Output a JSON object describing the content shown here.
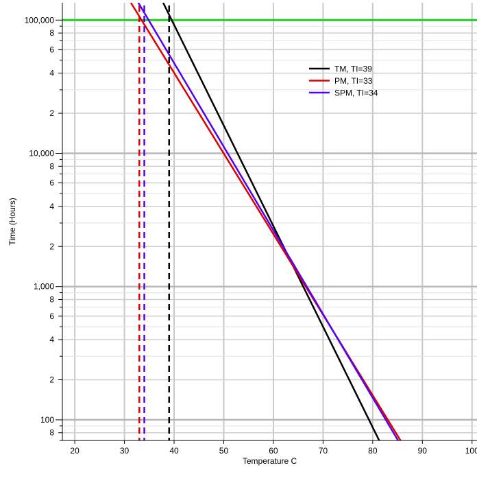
{
  "chart_data": {
    "type": "line",
    "xlabel": "Temperature C",
    "ylabel": "Time (Hours)",
    "xlim": [
      17.5,
      101
    ],
    "ylim": [
      70,
      135000
    ],
    "y_scale": "log",
    "grid": true,
    "x_ticks": [
      20,
      30,
      40,
      50,
      60,
      70,
      80,
      90,
      100
    ],
    "x_tick_labels": [
      "20",
      "30",
      "40",
      "50",
      "60",
      "70",
      "80",
      "90",
      "100"
    ],
    "y_major_ticks": [
      100,
      1000,
      10000,
      100000
    ],
    "y_major_labels": [
      "100",
      "1,000",
      "10,000",
      "100,000"
    ],
    "y_minor_labels": [
      "2",
      "4",
      "6",
      "8"
    ],
    "legend_position": "upper-right",
    "series": [
      {
        "name": "TM, TI=39",
        "color": "#000000",
        "points": [
          [
            37.8,
            135000
          ],
          [
            81.3,
            70
          ]
        ]
      },
      {
        "name": "PM, TI=33",
        "color": "#dd0000",
        "points": [
          [
            31.3,
            135000
          ],
          [
            85.6,
            70
          ]
        ]
      },
      {
        "name": "SPM, TI=34",
        "color": "#5500ee",
        "points": [
          [
            32.8,
            135000
          ],
          [
            85.1,
            70
          ]
        ]
      }
    ],
    "reference_lines": [
      {
        "axis": "y",
        "value": 100000,
        "color": "#22cc22",
        "style": "solid"
      },
      {
        "axis": "x",
        "value": 33,
        "color": "#dd0000",
        "style": "dashed"
      },
      {
        "axis": "x",
        "value": 34,
        "color": "#5500ee",
        "style": "dashed"
      },
      {
        "axis": "x",
        "value": 39,
        "color": "#000000",
        "style": "dashed"
      }
    ]
  }
}
